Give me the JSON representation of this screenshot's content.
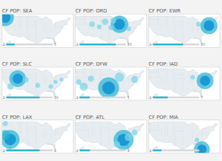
{
  "chart_data": [
    {
      "type": "scatter",
      "title": "CF POP: SEA",
      "x": [
        -122.3,
        -122.3
      ],
      "values": [
        47.6,
        47.6
      ],
      "sizes": [
        400,
        150
      ],
      "colors": [
        "#29b6d4",
        "#0288d1"
      ],
      "xlim": [
        -125,
        -65
      ],
      "ylim": [
        22.5,
        50.5
      ],
      "tick_labels": false,
      "bar_value": 0.18,
      "bar_labels": [
        "1",
        "5"
      ],
      "color": "#29b6d4"
    },
    {
      "type": "scatter",
      "title": "CF POP: ORD",
      "x": [
        -87.9,
        -87.9,
        -100.0,
        -111.0,
        -93.0,
        -95.0,
        -80.0,
        -104.9
      ],
      "values": [
        41.9,
        41.9,
        44.0,
        42.0,
        45.0,
        39.0,
        38.0,
        39.7
      ],
      "sizes": [
        420,
        160,
        55,
        40,
        45,
        35,
        28,
        30
      ],
      "colors": [
        "#29b6d4",
        "#0288d1",
        "#7dd4ea",
        "#7dd4ea",
        "#7dd4ea",
        "#7dd4ea",
        "#7dd4ea",
        "#7dd4ea"
      ],
      "xlim": [
        -125,
        -65
      ],
      "ylim": [
        22.5,
        50.5
      ],
      "tick_labels": false,
      "bar_value": 0.78,
      "bar_labels": [
        "1",
        "20"
      ],
      "color": "#29b6d4"
    },
    {
      "type": "scatter",
      "title": "CF POP: EWR",
      "x": [
        -74.2,
        -74.2,
        -83.0
      ],
      "values": [
        40.7,
        40.7,
        42.0
      ],
      "sizes": [
        400,
        150,
        30
      ],
      "colors": [
        "#29b6d4",
        "#0288d1",
        "#7dd4ea"
      ],
      "xlim": [
        -125,
        -65
      ],
      "ylim": [
        22.5,
        50.5
      ],
      "tick_labels": false,
      "bar_value": 0.65,
      "bar_labels": [
        "1",
        "20"
      ],
      "color": "#29b6d4"
    },
    {
      "type": "scatter",
      "title": "CF POP: SLC",
      "x": [
        -111.9,
        -111.9,
        -118.0,
        -104.9,
        -95.0,
        -84.0,
        -80.0,
        -75.0
      ],
      "values": [
        40.7,
        40.7,
        34.0,
        39.7,
        35.0,
        34.0,
        38.0,
        40.0
      ],
      "sizes": [
        380,
        140,
        55,
        40,
        32,
        28,
        24,
        20
      ],
      "colors": [
        "#29b6d4",
        "#0288d1",
        "#7dd4ea",
        "#7dd4ea",
        "#7dd4ea",
        "#7dd4ea",
        "#7dd4ea",
        "#7dd4ea"
      ],
      "xlim": [
        -125,
        -65
      ],
      "ylim": [
        22.5,
        50.5
      ],
      "tick_labels": false,
      "bar_value": 0.72,
      "bar_labels": [
        "1",
        "20"
      ],
      "color": "#29b6d4"
    },
    {
      "type": "scatter",
      "title": "CF POP: DFW",
      "x": [
        -97.0,
        -97.0,
        -87.9,
        -118.0,
        -75.0,
        -111.9,
        -122.3
      ],
      "values": [
        32.9,
        32.9,
        41.9,
        34.0,
        40.0,
        40.7,
        37.8
      ],
      "sizes": [
        600,
        220,
        120,
        90,
        70,
        50,
        40
      ],
      "colors": [
        "#29b6d4",
        "#0288d1",
        "#7dd4ea",
        "#7dd4ea",
        "#7dd4ea",
        "#7dd4ea",
        "#7dd4ea"
      ],
      "xlim": [
        -125,
        -65
      ],
      "ylim": [
        22.5,
        50.5
      ],
      "tick_labels": false,
      "bar_value": 0.22,
      "bar_labels": [
        "1",
        "5"
      ],
      "color": "#29b6d4"
    },
    {
      "type": "scatter",
      "title": "CF POP: IAD",
      "x": [
        -77.5,
        -77.5,
        -87.9
      ],
      "values": [
        38.9,
        38.9,
        41.9
      ],
      "sizes": [
        380,
        140,
        28
      ],
      "colors": [
        "#29b6d4",
        "#0288d1",
        "#7dd4ea"
      ],
      "xlim": [
        -125,
        -65
      ],
      "ylim": [
        22.5,
        50.5
      ],
      "tick_labels": false,
      "bar_value": 0.32,
      "bar_labels": [
        "1",
        "7"
      ],
      "color": "#29b6d4"
    },
    {
      "type": "scatter",
      "title": "CF POP: LAX",
      "x": [
        -118.2,
        -118.2,
        -122.4,
        -122.3
      ],
      "values": [
        34.0,
        34.0,
        37.8,
        47.6
      ],
      "sizes": [
        480,
        180,
        130,
        35
      ],
      "colors": [
        "#29b6d4",
        "#0288d1",
        "#29b6d4",
        "#7dd4ea"
      ],
      "xlim": [
        -125,
        -65
      ],
      "ylim": [
        22.5,
        50.5
      ],
      "tick_labels": false,
      "bar_value": 0.72,
      "bar_labels": [
        "1",
        "4"
      ],
      "color": "#29b6d4"
    },
    {
      "type": "scatter",
      "title": "CF POP: ATL",
      "x": [
        -84.4,
        -84.4,
        -80.2,
        -90.0,
        -75.0
      ],
      "values": [
        33.7,
        33.7,
        36.0,
        30.0,
        40.0
      ],
      "sizes": [
        540,
        200,
        80,
        55,
        45
      ],
      "colors": [
        "#29b6d4",
        "#0288d1",
        "#7dd4ea",
        "#7dd4ea",
        "#7dd4ea"
      ],
      "xlim": [
        -125,
        -65
      ],
      "ylim": [
        22.5,
        50.5
      ],
      "tick_labels": false,
      "bar_value": 0.22,
      "bar_labels": [
        "1",
        "4"
      ],
      "color": "#29b6d4"
    },
    {
      "type": "scatter",
      "title": "CF POP: MIA",
      "x": [
        -80.2,
        -80.2,
        -84.4
      ],
      "values": [
        25.8,
        25.8,
        33.7
      ],
      "sizes": [
        340,
        120,
        28
      ],
      "colors": [
        "#29b6d4",
        "#0288d1",
        "#7dd4ea"
      ],
      "xlim": [
        -125,
        -65
      ],
      "ylim": [
        22.5,
        50.5
      ],
      "tick_labels": false,
      "bar_value": 0.18,
      "bar_labels": [
        "1",
        "3"
      ],
      "color": "#29b6d4"
    }
  ]
}
